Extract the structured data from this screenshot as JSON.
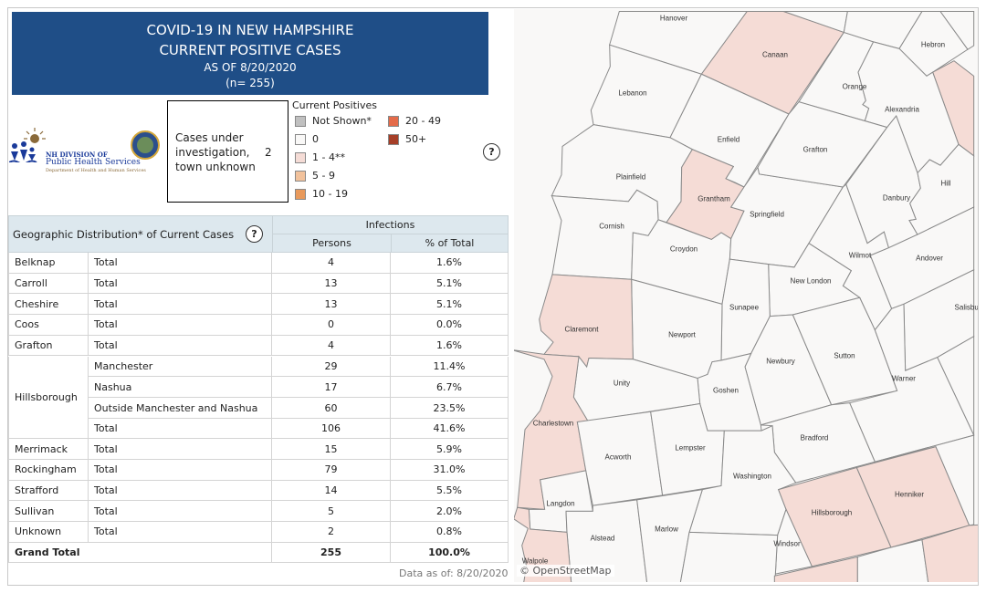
{
  "title": {
    "line1": "COVID-19 IN NEW HAMPSHIRE",
    "line2": "CURRENT POSITIVE CASES",
    "line3": "AS OF 8/20/2020",
    "line4": "(n= 255)"
  },
  "logo": {
    "line1": "NH DIVISION OF",
    "line2": "Public Health Services",
    "line3": "Department of Health and Human Services"
  },
  "investigation": {
    "label": "Cases under investigation, town unknown",
    "value": "2"
  },
  "legend": {
    "title": "Current Positives",
    "items": [
      {
        "label": "Not Shown*",
        "color": "#c0c0c0"
      },
      {
        "label": "0",
        "color": "#f9f8f7"
      },
      {
        "label": "1 - 4**",
        "color": "#f5dcd6"
      },
      {
        "label": "5 - 9",
        "color": "#f2c29c"
      },
      {
        "label": "10 - 19",
        "color": "#e99a5c"
      },
      {
        "label": "20 - 49",
        "color": "#e46b4a"
      },
      {
        "label": "50+",
        "color": "#a63f28"
      }
    ]
  },
  "help_icon": "?",
  "table": {
    "title": "Geographic Distribution* of Current Cases",
    "group_header": "Infections",
    "col_persons": "Persons",
    "col_pct": "% of Total",
    "rows": [
      {
        "county": "Belknap",
        "sub": "Total",
        "persons": "4",
        "pct": "1.6%"
      },
      {
        "county": "Carroll",
        "sub": "Total",
        "persons": "13",
        "pct": "5.1%"
      },
      {
        "county": "Cheshire",
        "sub": "Total",
        "persons": "13",
        "pct": "5.1%"
      },
      {
        "county": "Coos",
        "sub": "Total",
        "persons": "0",
        "pct": "0.0%"
      },
      {
        "county": "Grafton",
        "sub": "Total",
        "persons": "4",
        "pct": "1.6%"
      },
      {
        "county": "Hillsborough",
        "sub": "Manchester",
        "persons": "29",
        "pct": "11.4%"
      },
      {
        "county": "",
        "sub": "Nashua",
        "persons": "17",
        "pct": "6.7%"
      },
      {
        "county": "",
        "sub": "Outside Manchester and Nashua",
        "persons": "60",
        "pct": "23.5%"
      },
      {
        "county": "",
        "sub": "Total",
        "persons": "106",
        "pct": "41.6%"
      },
      {
        "county": "Merrimack",
        "sub": "Total",
        "persons": "15",
        "pct": "5.9%"
      },
      {
        "county": "Rockingham",
        "sub": "Total",
        "persons": "79",
        "pct": "31.0%"
      },
      {
        "county": "Strafford",
        "sub": "Total",
        "persons": "14",
        "pct": "5.5%"
      },
      {
        "county": "Sullivan",
        "sub": "Total",
        "persons": "5",
        "pct": "2.0%"
      },
      {
        "county": "Unknown",
        "sub": "Total",
        "persons": "2",
        "pct": "0.8%"
      }
    ],
    "grand_total": {
      "label": "Grand Total",
      "persons": "255",
      "pct": "100.0%"
    }
  },
  "data_as_of": "Data as of:  8/20/2020",
  "map": {
    "attribution": "© OpenStreetMap",
    "towns": [
      "Hanover",
      "Canaan",
      "Hebron",
      "Orange",
      "Alexandria",
      "Lebanon",
      "Enfield",
      "Grafton",
      "Plainfield",
      "Grantham",
      "Springfield",
      "Danbury",
      "Hill",
      "Cornish",
      "Croydon",
      "Wilmot",
      "Andover",
      "New London",
      "Sunapee",
      "Salisbury",
      "Claremont",
      "Newport",
      "Newbury",
      "Sutton",
      "Warner",
      "Unity",
      "Goshen",
      "Charlestown",
      "Bradford",
      "Acworth",
      "Lempster",
      "Washington",
      "Henniker",
      "Hillsborough",
      "Langdon",
      "Alstead",
      "Marlow",
      "Windsor",
      "Walpole"
    ],
    "shaded_towns": [
      "Canaan",
      "Grantham",
      "Claremont",
      "Charlestown",
      "Walpole",
      "Hillsborough",
      "Henniker"
    ]
  }
}
